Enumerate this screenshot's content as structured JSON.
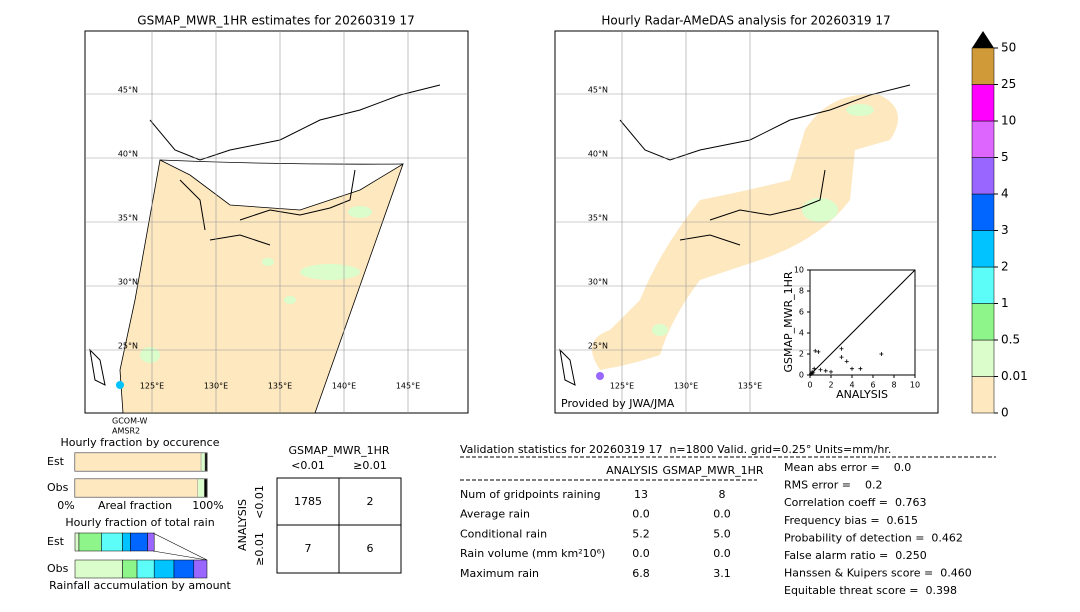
{
  "map_left": {
    "title": "GSMAP_MWR_1HR estimates for 20260319 17",
    "lat_labels": [
      "45°N",
      "40°N",
      "35°N",
      "30°N",
      "25°N"
    ],
    "lon_labels": [
      "125°E",
      "130°E",
      "135°E",
      "140°E",
      "145°E"
    ],
    "satellite": [
      "GCOM-W",
      "AMSR2"
    ]
  },
  "map_right": {
    "title": "Hourly Radar-AMeDAS analysis for 20260319 17",
    "lat_labels": [
      "45°N",
      "40°N",
      "35°N",
      "30°N",
      "25°N"
    ],
    "lon_labels": [
      "125°E",
      "130°E",
      "135°E"
    ],
    "credit": "Provided by JWA/JMA"
  },
  "colorbar": {
    "labels": [
      0,
      0.01,
      0.5,
      1,
      2,
      3,
      4,
      5,
      10,
      25,
      50
    ],
    "colors": [
      "#fde8c0",
      "#dbfccb",
      "#8ef58a",
      "#5cfdf9",
      "#00c3ff",
      "#0066ff",
      "#9966ff",
      "#dd66ff",
      "#ff00ff",
      "#d09a38"
    ]
  },
  "scatter": {
    "xlabel": "ANALYSIS",
    "ylabel": "GSMAP_MWR_1HR",
    "lim": [
      0,
      10
    ],
    "ticks": [
      0,
      2,
      4,
      6,
      8,
      10
    ],
    "x": [
      0.1,
      0.2,
      0.3,
      0.5,
      0.8,
      1.0,
      1.5,
      2.0,
      3.0,
      3.0,
      3.5,
      4.0,
      4.8,
      6.8,
      0.4
    ],
    "y": [
      0.1,
      0.3,
      0.2,
      2.3,
      2.2,
      0.5,
      0.4,
      0.3,
      2.5,
      1.7,
      1.3,
      0.6,
      0.6,
      2.0,
      0.6
    ]
  },
  "occurrence": {
    "title": "Hourly fraction by occurence",
    "rows": [
      "Est",
      "Obs"
    ],
    "axis": [
      "0%",
      "Areal fraction",
      "100%"
    ],
    "est": [
      0.955,
      0.03,
      0.015
    ],
    "obs": [
      0.93,
      0.05,
      0.02
    ],
    "colors": [
      "#fde8c0",
      "#dbfccb",
      "#000000"
    ]
  },
  "total_rain": {
    "title": "Hourly fraction of total rain",
    "rows": [
      "Est",
      "Obs"
    ],
    "axis": "Rainfall accumulation by amount",
    "est": [
      0.03,
      0.17,
      0.16,
      0.06,
      0.13,
      0.05
    ],
    "obs": [
      0.36,
      0.11,
      0.13,
      0.15,
      0.15,
      0.1
    ],
    "colors": [
      "#fde8c0",
      "#dbfccb",
      "#8ef58a",
      "#5cfdf9",
      "#00c3ff",
      "#0066ff",
      "#9966ff",
      "#dd66ff"
    ]
  },
  "contingency": {
    "title": "GSMAP_MWR_1HR",
    "cols": [
      "<0.01",
      "≥0.01"
    ],
    "side": "ANALYSIS",
    "rows": [
      "<0.01",
      "≥0.01"
    ],
    "cells": [
      [
        "1785",
        "2"
      ],
      [
        "7",
        "6"
      ]
    ]
  },
  "stats": {
    "header": "Validation statistics for 20260319 17  n=1800 Valid. grid=0.25° Units=mm/hr.",
    "cols": [
      "ANALYSIS",
      "GSMAP_MWR_1HR"
    ],
    "rows": [
      [
        "Num of gridpoints raining",
        "13",
        "8"
      ],
      [
        "Average rain",
        "0.0",
        "0.0"
      ],
      [
        "Conditional rain",
        "5.2",
        "5.0"
      ],
      [
        "Rain volume (mm km²10⁶)",
        "0.0",
        "0.0"
      ],
      [
        "Maximum rain",
        "6.8",
        "3.1"
      ]
    ],
    "scores": [
      "Mean abs error =    0.0",
      "RMS error =    0.2",
      "Correlation coeff =  0.763",
      "Frequency bias =  0.615",
      "Probability of detection =  0.462",
      "False alarm ratio =  0.250",
      "Hanssen & Kuipers score =  0.460",
      "Equitable threat score =  0.398"
    ]
  }
}
